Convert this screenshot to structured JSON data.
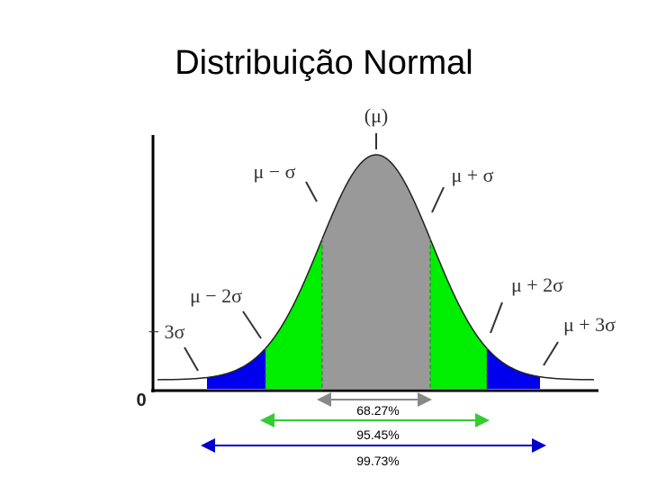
{
  "title": "Distribuição Normal",
  "labels": {
    "mean": "(μ)",
    "minus_1": "μ − σ",
    "plus_1": "μ + σ",
    "minus_2": "μ − 2σ",
    "plus_2": "μ + 2σ",
    "minus_3": "− 3σ",
    "plus_3": "μ + 3σ",
    "origin": "0"
  },
  "ranges": [
    "68.27%",
    "95.45%",
    "99.73%"
  ]
}
